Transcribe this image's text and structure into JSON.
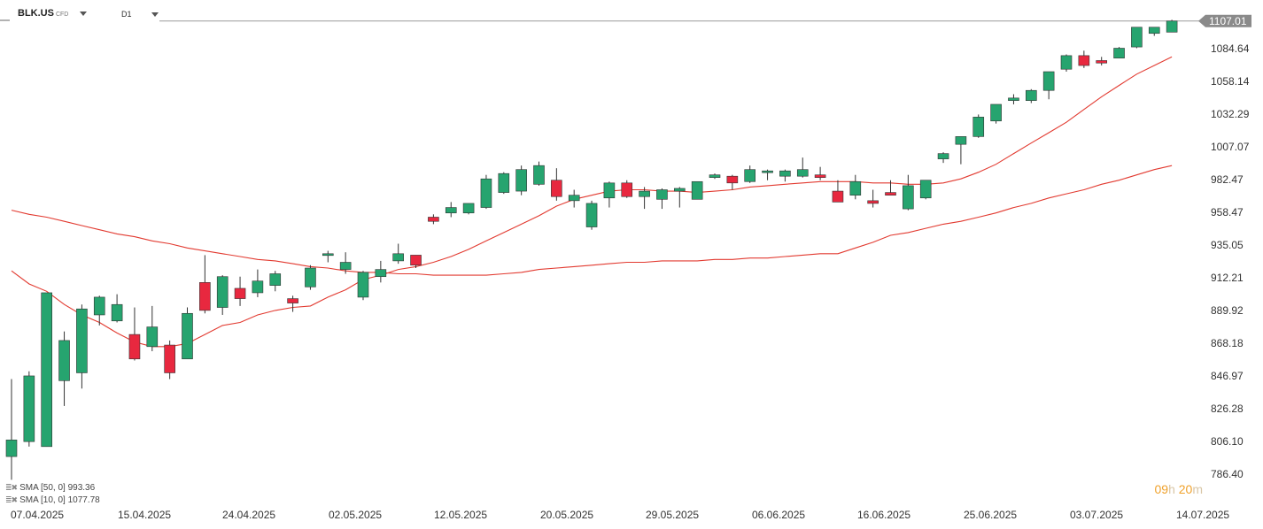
{
  "header": {
    "symbol": "BLK.US",
    "instrument_type": "CFD",
    "timeframe": "D1"
  },
  "legend": [
    {
      "label": "SMA",
      "params": "[50, 0]",
      "value": "993.36"
    },
    {
      "label": "SMA",
      "params": "[10, 0]",
      "value": "1077.78"
    }
  ],
  "timer": {
    "hours": "09",
    "h_unit": "h",
    "minutes": "20",
    "m_unit": "m"
  },
  "current_price_label": "1107.01",
  "colors": {
    "up": "#26a46f",
    "down": "#e8283f",
    "sma": "#e23a30",
    "grid_line": "#9a9a9a",
    "price_tag": "#8a8a8a"
  },
  "chart_data": {
    "type": "candlestick",
    "y_ticks": [
      "1084.64",
      "1058.14",
      "1032.29",
      "1007.07",
      "982.47",
      "958.47",
      "935.05",
      "912.21",
      "889.92",
      "868.18",
      "846.97",
      "826.28",
      "806.10",
      "786.40"
    ],
    "x_tick_labels": [
      "07.04.2025",
      "15.04.2025",
      "24.04.2025",
      "02.05.2025",
      "12.05.2025",
      "20.05.2025",
      "29.05.2025",
      "06.06.2025",
      "16.06.2025",
      "25.06.2025",
      "03.07.2025",
      "14.07.2025"
    ],
    "ylim": [
      773,
      1112
    ],
    "current_price": 1107.01,
    "candles": [
      {
        "o": 797,
        "h": 845,
        "l": 783,
        "c": 807
      },
      {
        "o": 806,
        "h": 850,
        "l": 803,
        "c": 847
      },
      {
        "o": 803,
        "h": 902,
        "l": 803,
        "c": 902
      },
      {
        "o": 844,
        "h": 876,
        "l": 828,
        "c": 870
      },
      {
        "o": 849,
        "h": 894,
        "l": 839,
        "c": 891
      },
      {
        "o": 887,
        "h": 900,
        "l": 880,
        "c": 899
      },
      {
        "o": 883,
        "h": 901,
        "l": 882,
        "c": 894
      },
      {
        "o": 874,
        "h": 892,
        "l": 857,
        "c": 858
      },
      {
        "o": 866,
        "h": 893,
        "l": 863,
        "c": 879
      },
      {
        "o": 867,
        "h": 870,
        "l": 845,
        "c": 849
      },
      {
        "o": 858,
        "h": 892,
        "l": 858,
        "c": 888
      },
      {
        "o": 909,
        "h": 928,
        "l": 888,
        "c": 890
      },
      {
        "o": 892,
        "h": 914,
        "l": 887,
        "c": 913
      },
      {
        "o": 905,
        "h": 913,
        "l": 893,
        "c": 898
      },
      {
        "o": 902,
        "h": 918,
        "l": 899,
        "c": 910
      },
      {
        "o": 907,
        "h": 917,
        "l": 903,
        "c": 915
      },
      {
        "o": 898,
        "h": 900,
        "l": 889,
        "c": 895
      },
      {
        "o": 906,
        "h": 921,
        "l": 904,
        "c": 919
      },
      {
        "o": 928,
        "h": 931,
        "l": 923,
        "c": 929
      },
      {
        "o": 918,
        "h": 930,
        "l": 915,
        "c": 923
      },
      {
        "o": 899,
        "h": 917,
        "l": 897,
        "c": 916
      },
      {
        "o": 913,
        "h": 924,
        "l": 909,
        "c": 918
      },
      {
        "o": 924,
        "h": 936,
        "l": 922,
        "c": 929
      },
      {
        "o": 928,
        "h": 928,
        "l": 919,
        "c": 921
      },
      {
        "o": 955,
        "h": 957,
        "l": 950,
        "c": 952
      },
      {
        "o": 958,
        "h": 966,
        "l": 955,
        "c": 962
      },
      {
        "o": 958,
        "h": 965,
        "l": 957,
        "c": 965
      },
      {
        "o": 962,
        "h": 986,
        "l": 961,
        "c": 983
      },
      {
        "o": 973,
        "h": 988,
        "l": 972,
        "c": 987
      },
      {
        "o": 974,
        "h": 993,
        "l": 971,
        "c": 990
      },
      {
        "o": 979,
        "h": 996,
        "l": 978,
        "c": 993
      },
      {
        "o": 982,
        "h": 991,
        "l": 967,
        "c": 970
      },
      {
        "o": 967,
        "h": 975,
        "l": 962,
        "c": 971
      },
      {
        "o": 948,
        "h": 967,
        "l": 946,
        "c": 965
      },
      {
        "o": 969,
        "h": 981,
        "l": 962,
        "c": 980
      },
      {
        "o": 980,
        "h": 982,
        "l": 969,
        "c": 970
      },
      {
        "o": 970,
        "h": 977,
        "l": 961,
        "c": 974
      },
      {
        "o": 968,
        "h": 976,
        "l": 961,
        "c": 975
      },
      {
        "o": 974,
        "h": 977,
        "l": 962,
        "c": 976
      },
      {
        "o": 968,
        "h": 981,
        "l": 968,
        "c": 981
      },
      {
        "o": 984,
        "h": 987,
        "l": 983,
        "c": 986
      },
      {
        "o": 985,
        "h": 986,
        "l": 975,
        "c": 980
      },
      {
        "o": 981,
        "h": 993,
        "l": 980,
        "c": 990
      },
      {
        "o": 988,
        "h": 990,
        "l": 982,
        "c": 989
      },
      {
        "o": 985,
        "h": 990,
        "l": 981,
        "c": 989
      },
      {
        "o": 985,
        "h": 999,
        "l": 984,
        "c": 990
      },
      {
        "o": 986,
        "h": 992,
        "l": 982,
        "c": 984
      },
      {
        "o": 974,
        "h": 982,
        "l": 966,
        "c": 966
      },
      {
        "o": 971,
        "h": 986,
        "l": 968,
        "c": 981
      },
      {
        "o": 967,
        "h": 975,
        "l": 962,
        "c": 965
      },
      {
        "o": 973,
        "h": 982,
        "l": 971,
        "c": 971
      },
      {
        "o": 961,
        "h": 986,
        "l": 960,
        "c": 978
      },
      {
        "o": 969,
        "h": 982,
        "l": 968,
        "c": 982
      },
      {
        "o": 998,
        "h": 1003,
        "l": 995,
        "c": 1002
      },
      {
        "o": 1009,
        "h": 1015,
        "l": 994,
        "c": 1015
      },
      {
        "o": 1015,
        "h": 1032,
        "l": 1014,
        "c": 1030
      },
      {
        "o": 1027,
        "h": 1040,
        "l": 1025,
        "c": 1040
      },
      {
        "o": 1043,
        "h": 1048,
        "l": 1040,
        "c": 1045
      },
      {
        "o": 1043,
        "h": 1052,
        "l": 1041,
        "c": 1051
      },
      {
        "o": 1051,
        "h": 1066,
        "l": 1044,
        "c": 1066
      },
      {
        "o": 1068,
        "h": 1080,
        "l": 1066,
        "c": 1079
      },
      {
        "o": 1079,
        "h": 1083,
        "l": 1069,
        "c": 1071
      },
      {
        "o": 1075,
        "h": 1078,
        "l": 1071,
        "c": 1073
      },
      {
        "o": 1077,
        "h": 1086,
        "l": 1077,
        "c": 1085
      },
      {
        "o": 1086,
        "h": 1102,
        "l": 1085,
        "c": 1102
      },
      {
        "o": 1097,
        "h": 1102,
        "l": 1095,
        "c": 1102
      },
      {
        "o": 1098,
        "h": 1108,
        "l": 1098,
        "c": 1107
      }
    ],
    "series": [
      {
        "name": "SMA [50, 0]",
        "values": [
          {
            "i": 0,
            "v": 960
          },
          {
            "i": 1,
            "v": 957
          },
          {
            "i": 2,
            "v": 955
          },
          {
            "i": 3,
            "v": 952
          },
          {
            "i": 4,
            "v": 949
          },
          {
            "i": 5,
            "v": 946
          },
          {
            "i": 6,
            "v": 943
          },
          {
            "i": 7,
            "v": 941
          },
          {
            "i": 8,
            "v": 938
          },
          {
            "i": 9,
            "v": 936
          },
          {
            "i": 10,
            "v": 933
          },
          {
            "i": 11,
            "v": 931
          },
          {
            "i": 12,
            "v": 929
          },
          {
            "i": 13,
            "v": 927
          },
          {
            "i": 14,
            "v": 925
          },
          {
            "i": 15,
            "v": 924
          },
          {
            "i": 16,
            "v": 922
          },
          {
            "i": 17,
            "v": 920
          },
          {
            "i": 18,
            "v": 919
          },
          {
            "i": 19,
            "v": 917
          },
          {
            "i": 20,
            "v": 916
          },
          {
            "i": 21,
            "v": 916
          },
          {
            "i": 22,
            "v": 915
          },
          {
            "i": 23,
            "v": 915
          },
          {
            "i": 24,
            "v": 914
          },
          {
            "i": 25,
            "v": 914
          },
          {
            "i": 26,
            "v": 914
          },
          {
            "i": 27,
            "v": 914
          },
          {
            "i": 28,
            "v": 915
          },
          {
            "i": 29,
            "v": 916
          },
          {
            "i": 30,
            "v": 918
          },
          {
            "i": 31,
            "v": 919
          },
          {
            "i": 32,
            "v": 920
          },
          {
            "i": 33,
            "v": 921
          },
          {
            "i": 34,
            "v": 922
          },
          {
            "i": 35,
            "v": 923
          },
          {
            "i": 36,
            "v": 923
          },
          {
            "i": 37,
            "v": 924
          },
          {
            "i": 38,
            "v": 924
          },
          {
            "i": 39,
            "v": 924
          },
          {
            "i": 40,
            "v": 925
          },
          {
            "i": 41,
            "v": 925
          },
          {
            "i": 42,
            "v": 926
          },
          {
            "i": 43,
            "v": 926
          },
          {
            "i": 44,
            "v": 927
          },
          {
            "i": 45,
            "v": 928
          },
          {
            "i": 46,
            "v": 929
          },
          {
            "i": 47,
            "v": 929
          },
          {
            "i": 48,
            "v": 933
          },
          {
            "i": 49,
            "v": 937
          },
          {
            "i": 50,
            "v": 942
          },
          {
            "i": 51,
            "v": 944
          },
          {
            "i": 52,
            "v": 947
          },
          {
            "i": 53,
            "v": 950
          },
          {
            "i": 54,
            "v": 952
          },
          {
            "i": 55,
            "v": 955
          },
          {
            "i": 56,
            "v": 958
          },
          {
            "i": 57,
            "v": 962
          },
          {
            "i": 58,
            "v": 965
          },
          {
            "i": 59,
            "v": 969
          },
          {
            "i": 60,
            "v": 972
          },
          {
            "i": 61,
            "v": 975
          },
          {
            "i": 62,
            "v": 979
          },
          {
            "i": 63,
            "v": 982
          },
          {
            "i": 64,
            "v": 986
          },
          {
            "i": 65,
            "v": 990
          },
          {
            "i": 66,
            "v": 993
          }
        ]
      },
      {
        "name": "SMA [10, 0]",
        "values": [
          {
            "i": 0,
            "v": 917
          },
          {
            "i": 1,
            "v": 908
          },
          {
            "i": 2,
            "v": 903
          },
          {
            "i": 3,
            "v": 894
          },
          {
            "i": 4,
            "v": 887
          },
          {
            "i": 5,
            "v": 882
          },
          {
            "i": 6,
            "v": 875
          },
          {
            "i": 7,
            "v": 869
          },
          {
            "i": 8,
            "v": 866
          },
          {
            "i": 9,
            "v": 866
          },
          {
            "i": 10,
            "v": 868
          },
          {
            "i": 11,
            "v": 874
          },
          {
            "i": 12,
            "v": 880
          },
          {
            "i": 13,
            "v": 882
          },
          {
            "i": 14,
            "v": 887
          },
          {
            "i": 15,
            "v": 890
          },
          {
            "i": 16,
            "v": 892
          },
          {
            "i": 17,
            "v": 893
          },
          {
            "i": 18,
            "v": 899
          },
          {
            "i": 19,
            "v": 904
          },
          {
            "i": 20,
            "v": 911
          },
          {
            "i": 21,
            "v": 914
          },
          {
            "i": 22,
            "v": 918
          },
          {
            "i": 23,
            "v": 920
          },
          {
            "i": 24,
            "v": 923
          },
          {
            "i": 25,
            "v": 927
          },
          {
            "i": 26,
            "v": 932
          },
          {
            "i": 27,
            "v": 938
          },
          {
            "i": 28,
            "v": 944
          },
          {
            "i": 29,
            "v": 950
          },
          {
            "i": 30,
            "v": 956
          },
          {
            "i": 31,
            "v": 963
          },
          {
            "i": 32,
            "v": 968
          },
          {
            "i": 33,
            "v": 971
          },
          {
            "i": 34,
            "v": 974
          },
          {
            "i": 35,
            "v": 975
          },
          {
            "i": 36,
            "v": 975
          },
          {
            "i": 37,
            "v": 974
          },
          {
            "i": 38,
            "v": 974
          },
          {
            "i": 39,
            "v": 973
          },
          {
            "i": 40,
            "v": 974
          },
          {
            "i": 41,
            "v": 975
          },
          {
            "i": 42,
            "v": 977
          },
          {
            "i": 43,
            "v": 978
          },
          {
            "i": 44,
            "v": 979
          },
          {
            "i": 45,
            "v": 980
          },
          {
            "i": 46,
            "v": 981
          },
          {
            "i": 47,
            "v": 981
          },
          {
            "i": 48,
            "v": 981
          },
          {
            "i": 49,
            "v": 980
          },
          {
            "i": 50,
            "v": 980
          },
          {
            "i": 51,
            "v": 979
          },
          {
            "i": 52,
            "v": 979
          },
          {
            "i": 53,
            "v": 980
          },
          {
            "i": 54,
            "v": 983
          },
          {
            "i": 55,
            "v": 988
          },
          {
            "i": 56,
            "v": 994
          },
          {
            "i": 57,
            "v": 1002
          },
          {
            "i": 58,
            "v": 1010
          },
          {
            "i": 59,
            "v": 1018
          },
          {
            "i": 60,
            "v": 1026
          },
          {
            "i": 61,
            "v": 1036
          },
          {
            "i": 62,
            "v": 1046
          },
          {
            "i": 63,
            "v": 1055
          },
          {
            "i": 64,
            "v": 1064
          },
          {
            "i": 65,
            "v": 1071
          },
          {
            "i": 66,
            "v": 1078
          }
        ]
      }
    ]
  }
}
